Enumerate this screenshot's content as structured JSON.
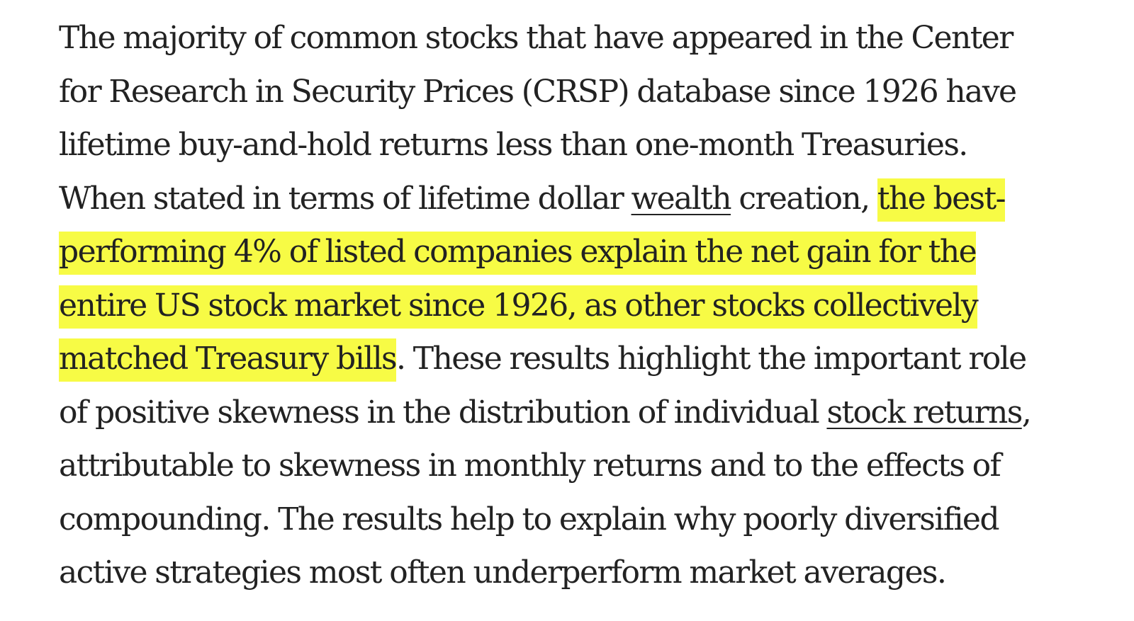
{
  "article": {
    "highlight_color": "#f7fb45",
    "text_color": "#222222",
    "lines": [
      {
        "text": "The majority of common stocks that have appeared in the Center"
      },
      {
        "text": "for Research in Security Prices (CRSP) database since 1926 have"
      },
      {
        "text": "lifetime buy-and-hold returns less than one-month Treasuries."
      },
      {
        "pre": "When stated in terms of lifetime dollar ",
        "link": "wealth",
        "mid": " creation, ",
        "highlight": "the best-"
      },
      {
        "highlight": "performing 4% of listed companies explain the net gain for the"
      },
      {
        "highlight": "entire US stock market since 1926, as other stocks collectively"
      },
      {
        "highlight": "matched Treasury bills",
        "post": ". These results highlight the important role"
      },
      {
        "pre": "of positive skewness in the distribution of individual ",
        "link": "stock returns",
        "post": ","
      },
      {
        "text": "attributable to skewness in monthly returns and to the effects of"
      },
      {
        "text": "compounding. The results help to explain why poorly diversified"
      },
      {
        "text": "active strategies most often underperform market averages."
      }
    ]
  }
}
